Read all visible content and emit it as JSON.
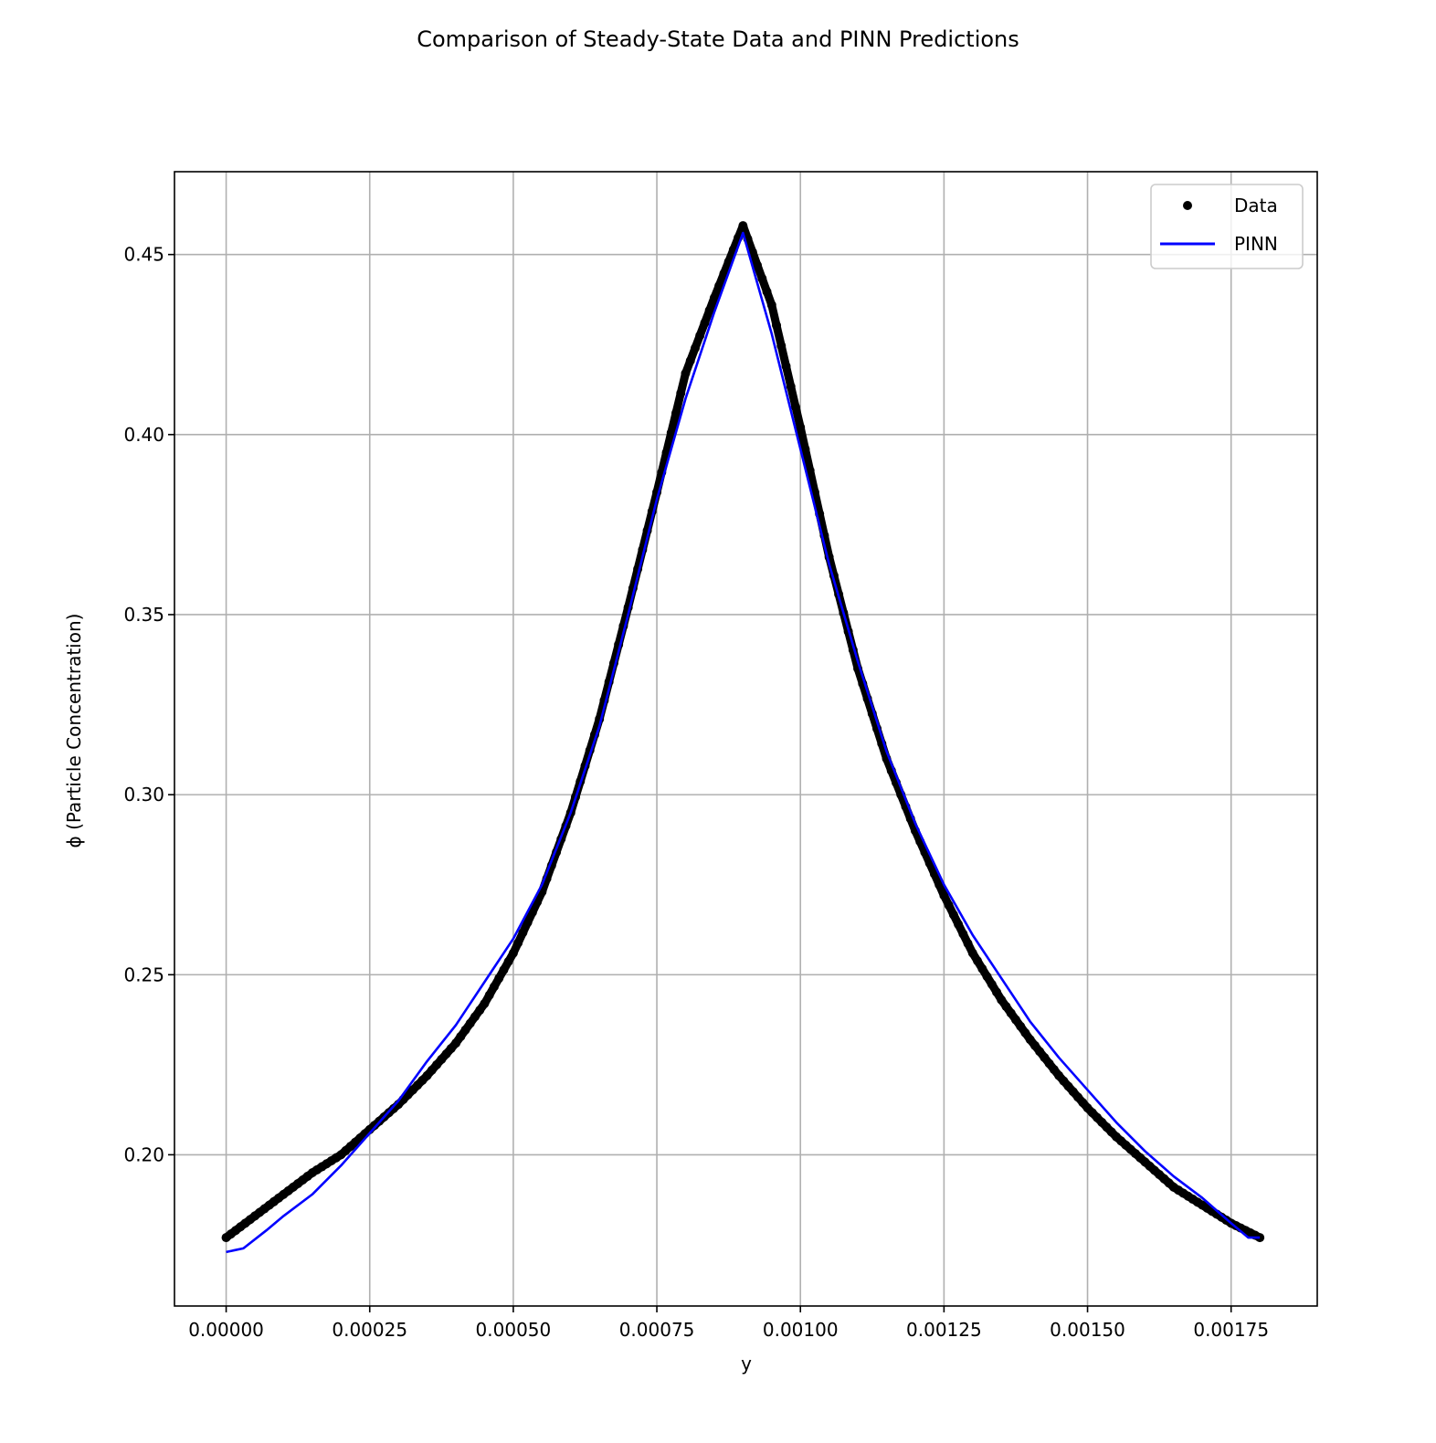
{
  "chart_data": {
    "type": "line",
    "title": "Comparison of Steady-State Data and PINN Predictions",
    "xlabel": "y",
    "ylabel": "ϕ (Particle Concentration)",
    "xlim": [
      -9e-05,
      0.0019
    ],
    "ylim": [
      0.158,
      0.473
    ],
    "xticks": [
      0.0,
      0.00025,
      0.0005,
      0.00075,
      0.001,
      0.00125,
      0.0015,
      0.00175
    ],
    "xtick_labels": [
      "0.00000",
      "0.00025",
      "0.00050",
      "0.00075",
      "0.00100",
      "0.00125",
      "0.00150",
      "0.00175"
    ],
    "yticks": [
      0.2,
      0.25,
      0.3,
      0.35,
      0.4,
      0.45
    ],
    "ytick_labels": [
      "0.20",
      "0.25",
      "0.30",
      "0.35",
      "0.40",
      "0.45"
    ],
    "grid": true,
    "legend_position": "top-right",
    "series": [
      {
        "name": "Data",
        "style": "markers",
        "color": "#000000",
        "x": [
          0.0,
          5e-05,
          0.0001,
          0.00015,
          0.0002,
          0.00025,
          0.0003,
          0.00035,
          0.0004,
          0.00045,
          0.0005,
          0.00055,
          0.0006,
          0.00065,
          0.0007,
          0.00075,
          0.0008,
          0.00085,
          0.0009,
          0.00095,
          0.001,
          0.00105,
          0.0011,
          0.00115,
          0.0012,
          0.00125,
          0.0013,
          0.00135,
          0.0014,
          0.00145,
          0.0015,
          0.00155,
          0.0016,
          0.00165,
          0.0017,
          0.00175,
          0.0018
        ],
        "y": [
          0.177,
          0.183,
          0.189,
          0.195,
          0.2,
          0.207,
          0.214,
          0.222,
          0.231,
          0.242,
          0.256,
          0.273,
          0.295,
          0.321,
          0.352,
          0.384,
          0.417,
          0.438,
          0.458,
          0.436,
          0.402,
          0.366,
          0.335,
          0.31,
          0.29,
          0.272,
          0.256,
          0.243,
          0.232,
          0.222,
          0.213,
          0.205,
          0.198,
          0.191,
          0.186,
          0.181,
          0.177
        ]
      },
      {
        "name": "PINN",
        "style": "line",
        "color": "#0000ff",
        "x": [
          0.0,
          3e-05,
          7e-05,
          0.0001,
          0.00015,
          0.0002,
          0.00025,
          0.0003,
          0.00035,
          0.0004,
          0.00045,
          0.0005,
          0.00055,
          0.0006,
          0.00065,
          0.0007,
          0.00075,
          0.0008,
          0.00085,
          0.0009,
          0.00095,
          0.001,
          0.00105,
          0.0011,
          0.00115,
          0.0012,
          0.00125,
          0.0013,
          0.00135,
          0.0014,
          0.00145,
          0.0015,
          0.00155,
          0.0016,
          0.00165,
          0.0017,
          0.00175,
          0.00178,
          0.0018
        ],
        "y": [
          0.173,
          0.174,
          0.179,
          0.183,
          0.189,
          0.197,
          0.206,
          0.215,
          0.226,
          0.236,
          0.248,
          0.26,
          0.275,
          0.295,
          0.319,
          0.35,
          0.382,
          0.41,
          0.434,
          0.456,
          0.428,
          0.396,
          0.364,
          0.337,
          0.312,
          0.292,
          0.275,
          0.261,
          0.249,
          0.237,
          0.227,
          0.218,
          0.209,
          0.201,
          0.194,
          0.188,
          0.181,
          0.177,
          0.177
        ]
      }
    ]
  }
}
